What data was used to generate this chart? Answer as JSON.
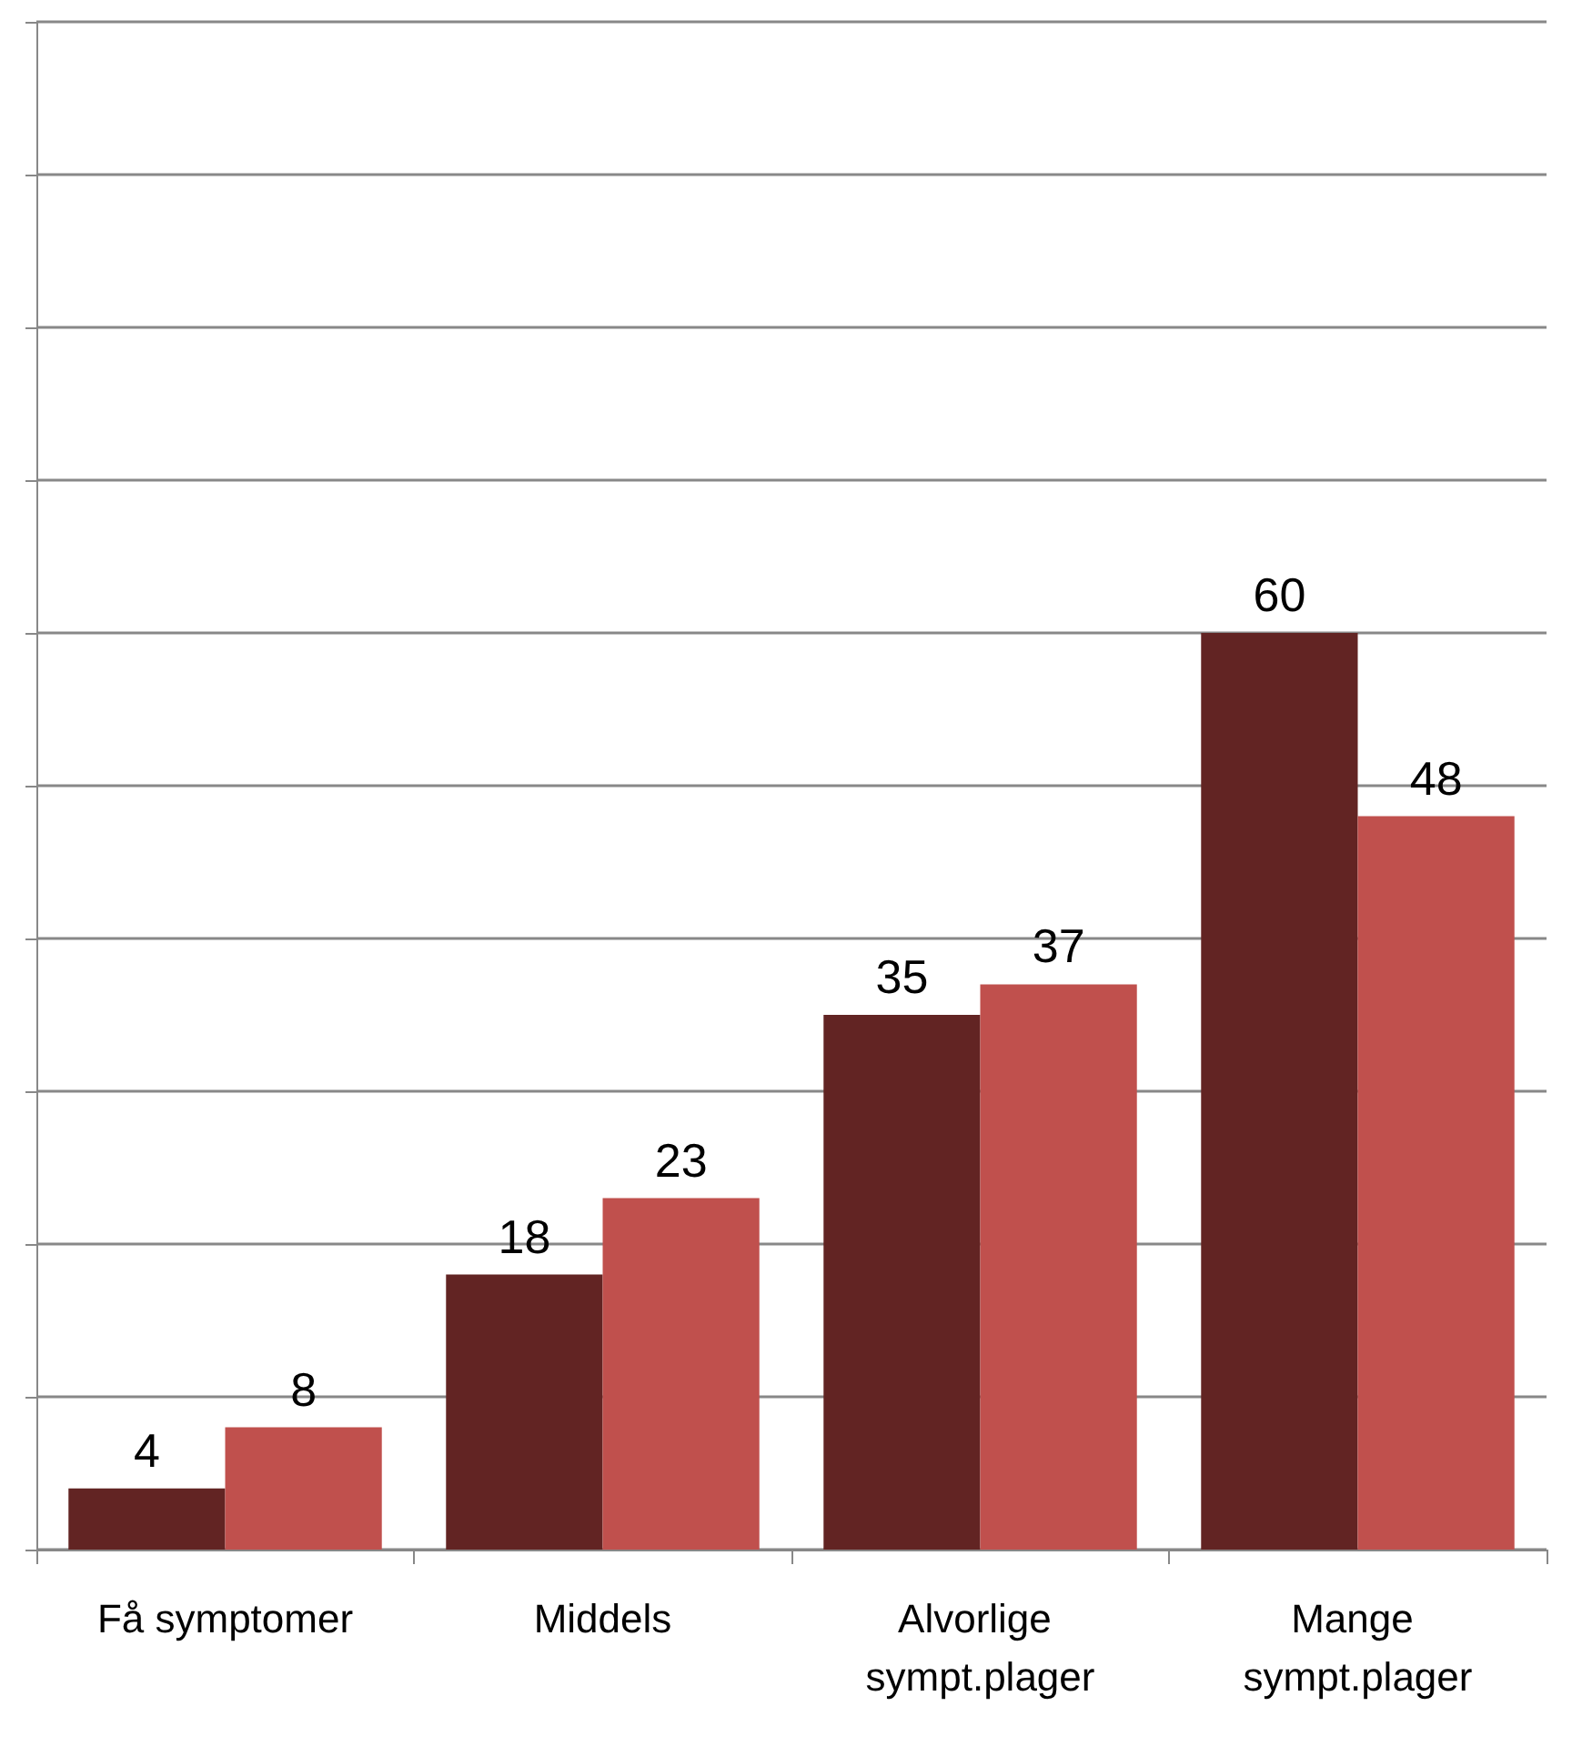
{
  "chart_data": {
    "type": "bar",
    "categories": [
      "Få symptomer",
      "Middels",
      "Alvorlige sympt.plager",
      "Mange sympt.plager"
    ],
    "series": [
      {
        "color": "#622423",
        "values": [
          4,
          18,
          35,
          60
        ]
      },
      {
        "color": "#c0504d",
        "values": [
          8,
          23,
          37,
          48
        ]
      }
    ],
    "ylim": [
      0,
      100
    ],
    "yticks": [
      0,
      10,
      20,
      30,
      40,
      50,
      60,
      70,
      80,
      90,
      100
    ],
    "grid": "y",
    "tick_labels": "x",
    "data_labels": true
  }
}
